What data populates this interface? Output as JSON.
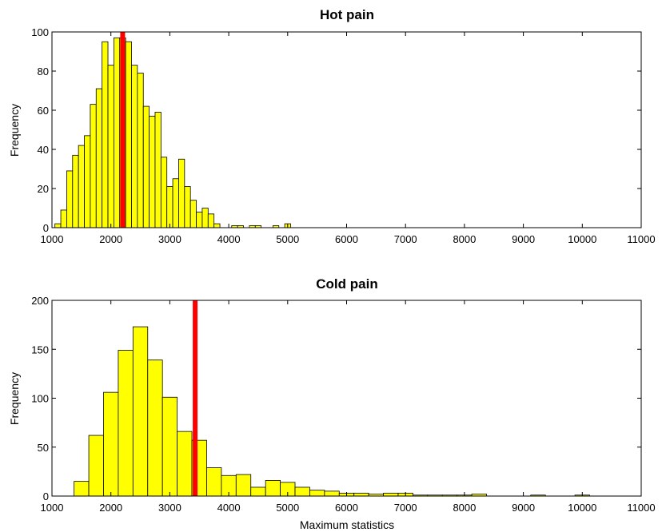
{
  "colors": {
    "bar_fill": "#ffff00",
    "bar_stroke": "#000000",
    "marker": "#ff0000",
    "background": "#ffffff"
  },
  "chart_data": [
    {
      "type": "bar",
      "title": "Hot pain",
      "xlabel": "",
      "ylabel": "Frequency",
      "xlim": [
        1000,
        11000
      ],
      "ylim": [
        0,
        100
      ],
      "xticks": [
        1000,
        2000,
        3000,
        4000,
        5000,
        6000,
        7000,
        8000,
        9000,
        10000,
        11000
      ],
      "yticks": [
        0,
        20,
        40,
        60,
        80,
        100
      ],
      "bin_width": 100,
      "bins_x": [
        1100,
        1200,
        1300,
        1400,
        1500,
        1600,
        1700,
        1800,
        1900,
        2000,
        2100,
        2200,
        2300,
        2400,
        2500,
        2600,
        2700,
        2800,
        2900,
        3000,
        3100,
        3200,
        3300,
        3400,
        3500,
        3600,
        3700,
        3800,
        3900,
        4000,
        4100,
        4200,
        4300,
        4400,
        4500,
        4600,
        4700,
        4800,
        4900,
        5000,
        5100
      ],
      "values": [
        2,
        9,
        29,
        37,
        42,
        47,
        63,
        71,
        95,
        83,
        97,
        97,
        95,
        83,
        79,
        62,
        57,
        59,
        36,
        21,
        25,
        35,
        21,
        14,
        8,
        10,
        7,
        2,
        0,
        0,
        1,
        1,
        0,
        1,
        1,
        0,
        0,
        1,
        0,
        2,
        0
      ],
      "marker_x": 2200,
      "grid": false
    },
    {
      "type": "bar",
      "title": "Cold pain",
      "xlabel": "Maximum statistics",
      "ylabel": "Frequency",
      "xlim": [
        1000,
        11000
      ],
      "ylim": [
        0,
        200
      ],
      "xticks": [
        1000,
        2000,
        3000,
        4000,
        5000,
        6000,
        7000,
        8000,
        9000,
        10000,
        11000
      ],
      "yticks": [
        0,
        50,
        100,
        150,
        200
      ],
      "bin_width": 250,
      "bins_x": [
        1500,
        1750,
        2000,
        2250,
        2500,
        2750,
        3000,
        3250,
        3500,
        3750,
        4000,
        4250,
        4500,
        4750,
        5000,
        5250,
        5500,
        5750,
        6000,
        6250,
        6500,
        6750,
        7000,
        7250,
        7500,
        7750,
        8000,
        8250,
        8500,
        8750,
        9000,
        9250,
        9500,
        9750,
        10000,
        10250,
        10500,
        10750
      ],
      "values": [
        15,
        62,
        106,
        149,
        173,
        139,
        101,
        66,
        57,
        29,
        21,
        22,
        9,
        16,
        14,
        9,
        6,
        5,
        3,
        3,
        2,
        3,
        3,
        1,
        1,
        1,
        1,
        2,
        0,
        0,
        0,
        1,
        0,
        0,
        1,
        0,
        0,
        0
      ],
      "marker_x": 3430,
      "grid": false
    }
  ]
}
